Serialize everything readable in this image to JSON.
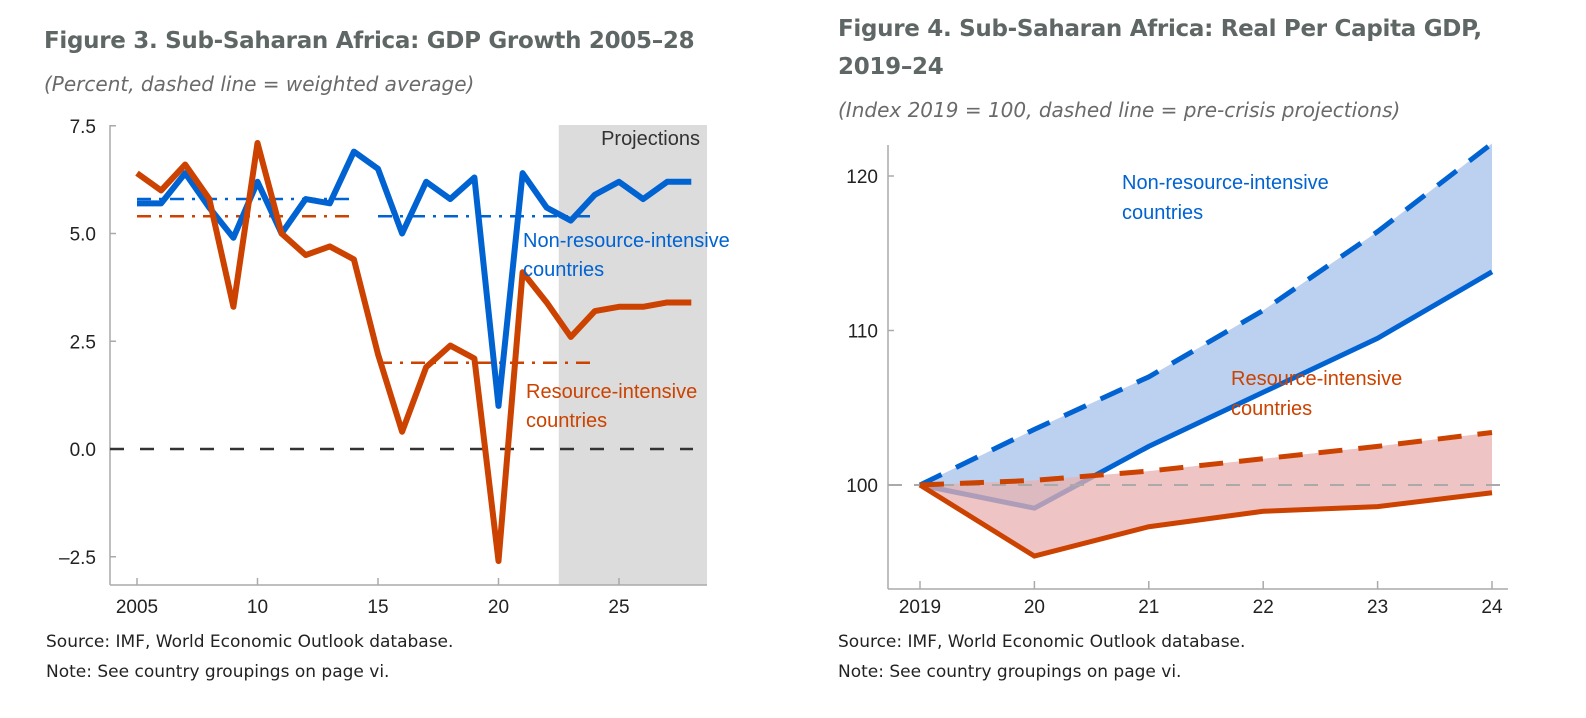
{
  "figure3": {
    "title": "Figure 3. Sub-Saharan Africa: GDP Growth 2005–28",
    "subtitle": "(Percent, dashed line = weighted average)",
    "source": "Source: IMF, World Economic Outlook database.",
    "note": "Note: See country groupings on page vi."
  },
  "figure4": {
    "title_line1": "Figure 4. Sub-Saharan Africa: Real Per Capita GDP,",
    "title_line2": "2019–24",
    "subtitle": "(Index 2019 = 100, dashed line = pre-crisis projections)",
    "source": "Source: IMF, World Economic Outlook database.",
    "note": "Note: See country groupings on page vi."
  },
  "colors": {
    "non_resource": "#0063d1",
    "resource": "#cc4200",
    "projection_shade": "#dcdcdc",
    "non_resource_fill": "#bcd1f0",
    "resource_fill": "#e8b0b0"
  },
  "chart_data": [
    {
      "type": "line",
      "ylim": [
        -3.3,
        7.5
      ],
      "yticks": [
        7.5,
        5.0,
        2.5,
        0.0,
        -2.5
      ],
      "ytick_labels": [
        "7.5",
        "5.0",
        "2.5",
        "0.0",
        "–2.5"
      ],
      "xticks": [
        2005,
        2010,
        2015,
        2020,
        2025
      ],
      "xtick_labels": [
        "2005",
        "10",
        "15",
        "20",
        "25"
      ],
      "xlim": [
        2003.9,
        2028.8
      ],
      "projection_label": "Projections",
      "projection_start": 2022.5,
      "x": [
        2005,
        2006,
        2007,
        2008,
        2009,
        2010,
        2011,
        2012,
        2013,
        2014,
        2015,
        2016,
        2017,
        2018,
        2019,
        2020,
        2021,
        2022,
        2023,
        2024,
        2025,
        2026,
        2027,
        2028
      ],
      "series": [
        {
          "name": "Non-resource-intensive countries",
          "label_line1": "Non-resource-intensive",
          "label_line2": "countries",
          "values": [
            5.7,
            5.7,
            6.4,
            5.6,
            4.9,
            6.2,
            5.0,
            5.8,
            5.7,
            6.9,
            6.5,
            5.0,
            6.2,
            5.8,
            6.3,
            1.0,
            6.4,
            5.6,
            5.3,
            5.9,
            6.2,
            5.8,
            6.2,
            6.2
          ]
        },
        {
          "name": "Resource-intensive countries",
          "label_line1": "Resource-intensive",
          "label_line2": "countries",
          "values": [
            6.4,
            6.0,
            6.6,
            5.8,
            3.3,
            7.1,
            5.0,
            4.5,
            4.7,
            4.4,
            2.2,
            0.4,
            1.9,
            2.4,
            2.1,
            -2.6,
            4.1,
            3.4,
            2.6,
            3.2,
            3.3,
            3.3,
            3.4,
            3.4
          ]
        }
      ],
      "averages": [
        {
          "series": "Non-resource-intensive countries",
          "from": 2005,
          "to": 2014,
          "value": 5.8
        },
        {
          "series": "Non-resource-intensive countries",
          "from": 2015,
          "to": 2024,
          "value": 5.4
        },
        {
          "series": "Resource-intensive countries",
          "from": 2005,
          "to": 2014,
          "value": 5.4
        },
        {
          "series": "Resource-intensive countries",
          "from": 2015,
          "to": 2024,
          "value": 2.0
        }
      ],
      "reference_line": 0
    },
    {
      "type": "area",
      "ylim": [
        93.3,
        122.2
      ],
      "yticks": [
        100,
        110,
        120
      ],
      "ytick_labels": [
        "100",
        "110",
        "120"
      ],
      "x": [
        2019,
        2020,
        2021,
        2022,
        2023,
        2024
      ],
      "xtick_labels": [
        "2019",
        "20",
        "21",
        "22",
        "23",
        "24"
      ],
      "series": [
        {
          "name": "Non-resource-intensive countries",
          "label_line1": "Non-resource-intensive",
          "label_line2": "countries",
          "actual": [
            100,
            98.5,
            102.5,
            106.0,
            109.5,
            113.8
          ],
          "pre_crisis": [
            100,
            103.6,
            107.0,
            111.3,
            116.4,
            122.1
          ]
        },
        {
          "name": "Resource-intensive countries",
          "label_line1": "Resource-intensive",
          "label_line2": "countries",
          "actual": [
            100,
            95.4,
            97.3,
            98.3,
            98.6,
            99.5
          ],
          "pre_crisis": [
            100,
            100.3,
            100.9,
            101.7,
            102.5,
            103.4
          ]
        }
      ],
      "reference_line": 100
    }
  ]
}
